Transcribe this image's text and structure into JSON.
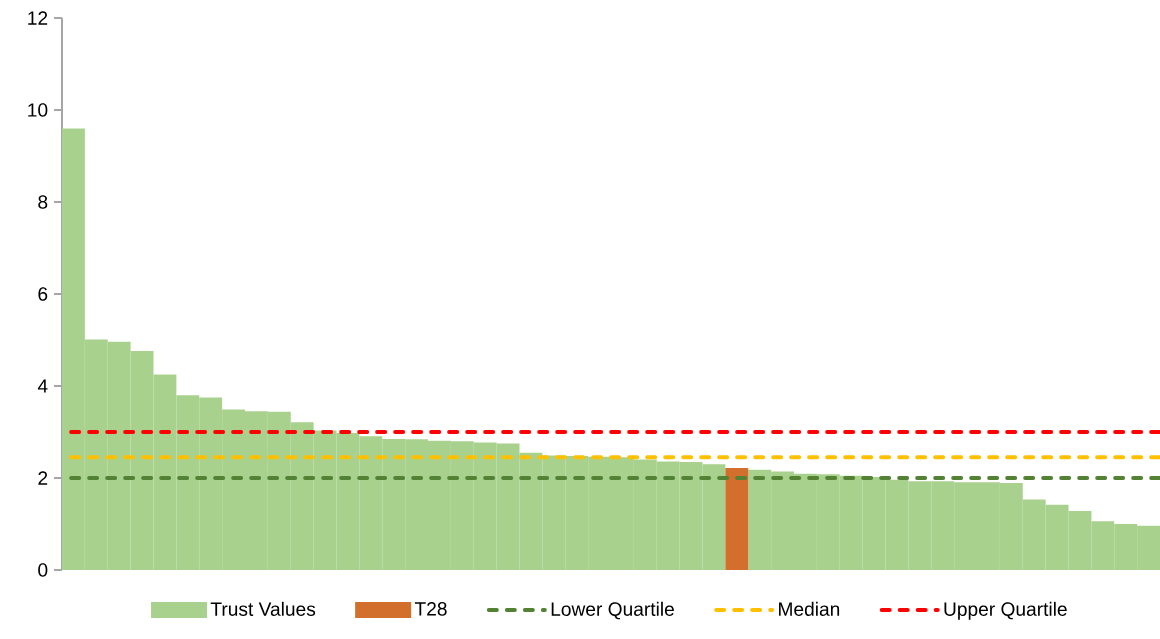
{
  "chart_data": {
    "type": "bar",
    "categories": [
      null,
      null,
      null,
      null,
      null,
      null,
      null,
      null,
      null,
      null,
      null,
      null,
      null,
      null,
      null,
      null,
      null,
      null,
      null,
      null,
      null,
      null,
      null,
      null,
      null,
      null,
      null,
      null,
      null,
      null,
      null,
      null,
      null,
      null,
      null,
      null,
      null,
      null,
      null,
      null,
      null,
      null,
      null,
      null,
      null,
      null,
      null,
      null
    ],
    "series": [
      {
        "name": "Trust Values",
        "color": "#a9d18e",
        "values": [
          9.6,
          5.01,
          4.96,
          4.76,
          4.25,
          3.8,
          3.75,
          3.49,
          3.45,
          3.44,
          3.21,
          3.03,
          2.98,
          2.91,
          2.85,
          2.84,
          2.81,
          2.8,
          2.77,
          2.75,
          2.55,
          2.49,
          2.48,
          2.46,
          2.45,
          2.4,
          2.36,
          2.35,
          2.3,
          null,
          2.18,
          2.14,
          2.09,
          2.08,
          2.05,
          2.02,
          1.96,
          1.93,
          1.93,
          1.91,
          1.91,
          1.89,
          1.53,
          1.42,
          1.28,
          1.06,
          1.0,
          0.96
        ]
      },
      {
        "name": "T28",
        "color": "#d26f2c",
        "values": [
          null,
          null,
          null,
          null,
          null,
          null,
          null,
          null,
          null,
          null,
          null,
          null,
          null,
          null,
          null,
          null,
          null,
          null,
          null,
          null,
          null,
          null,
          null,
          null,
          null,
          null,
          null,
          null,
          null,
          2.22,
          null,
          null,
          null,
          null,
          null,
          null,
          null,
          null,
          null,
          null,
          null,
          null,
          null,
          null,
          null,
          null,
          null,
          null
        ]
      }
    ],
    "ref_lines": [
      {
        "axis": "y",
        "value": 2.0,
        "label": "Lower Quartile",
        "color": "#548235",
        "line_style": "dashed"
      },
      {
        "axis": "y",
        "value": 2.45,
        "label": "Median",
        "color": "#ffc000",
        "line_style": "dashed"
      },
      {
        "axis": "y",
        "value": 3.0,
        "label": "Upper Quartile",
        "color": "#ff0000",
        "line_style": "dashed"
      }
    ],
    "ylim": [
      0,
      12
    ],
    "yticks": [
      0,
      2,
      4,
      6,
      8,
      10,
      12
    ],
    "legend": "bottom"
  }
}
